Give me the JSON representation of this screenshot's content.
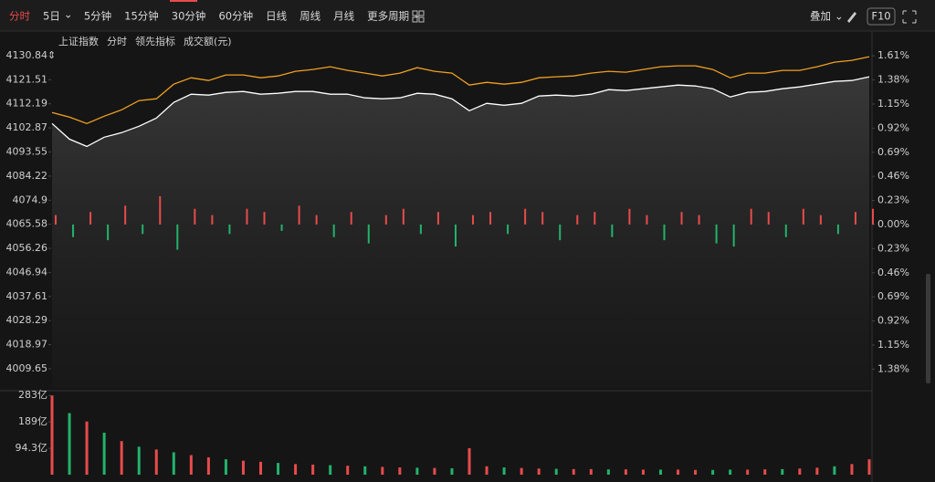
{
  "toolbar": {
    "periods": [
      "分时",
      "5日",
      "5分钟",
      "15分钟",
      "30分钟",
      "60分钟",
      "日线",
      "周线",
      "月线",
      "更多周期"
    ],
    "overlay": "叠加",
    "f10": "F10"
  },
  "chart_data": [
    {
      "type": "line",
      "header_labels": [
        "分时",
        "成交额(元)"
      ],
      "series": [
        {
          "name": "上证指数",
          "color": "#ffffff",
          "values": [
            4104.56,
            4098.54,
            4095.7,
            4099.25,
            4101.02,
            4103.5,
            4106.69,
            4112.72,
            4115.9,
            4115.55,
            4116.61,
            4116.97,
            4115.9,
            4116.26,
            4116.97,
            4116.97,
            4115.9,
            4115.9,
            4114.49,
            4114.13,
            4114.49,
            4116.26,
            4115.9,
            4114.13,
            4109.53,
            4112.36,
            4111.65,
            4112.36,
            4115.2,
            4115.55,
            4115.2,
            4115.9,
            4117.68,
            4117.32,
            4118.03,
            4118.74,
            4119.45,
            4119.09,
            4118.03,
            4114.84,
            4116.61,
            4116.97,
            4118.03,
            4118.74,
            4119.8,
            4120.87,
            4121.22,
            4122.64
          ]
        },
        {
          "name": "领先指标",
          "color": "#f0a020",
          "values": [
            4108.82,
            4107.04,
            4104.56,
            4107.4,
            4109.88,
            4113.42,
            4114.13,
            4119.8,
            4122.28,
            4121.22,
            4123.35,
            4123.35,
            4122.28,
            4122.99,
            4124.76,
            4125.47,
            4126.54,
            4125.12,
            4124.06,
            4122.99,
            4124.06,
            4126.18,
            4124.76,
            4124.06,
            4119.45,
            4120.51,
            4119.8,
            4120.51,
            4122.28,
            4122.64,
            4122.99,
            4124.06,
            4124.76,
            4124.41,
            4125.47,
            4126.54,
            4126.89,
            4126.89,
            4125.47,
            4122.28,
            4124.06,
            4124.06,
            4125.12,
            4125.12,
            4126.54,
            4128.31,
            4129.02,
            4130.44
          ]
        }
      ],
      "bars": {
        "axis": "y2",
        "values": [
          0.09,
          -0.12,
          0.12,
          -0.15,
          0.18,
          -0.09,
          0.27,
          -0.24,
          0.15,
          0.09,
          -0.09,
          0.15,
          0.12,
          -0.06,
          0.18,
          0.09,
          -0.12,
          0.12,
          -0.18,
          0.09,
          0.15,
          -0.09,
          0.12,
          -0.21,
          0.09,
          0.12,
          -0.09,
          0.15,
          0.12,
          -0.15,
          0.09,
          0.12,
          -0.12,
          0.15,
          0.09,
          -0.15,
          0.12,
          0.09,
          -0.18,
          -0.21,
          0.15,
          0.12,
          -0.12,
          0.15,
          0.09,
          -0.09,
          0.12,
          0.15
        ]
      },
      "up_color": "#e84b4b",
      "down_color": "#22b36b",
      "ylim": [
        4002.2,
        4134.0
      ],
      "yticks": [
        4130.84,
        4121.51,
        4112.19,
        4102.87,
        4093.55,
        4084.22,
        4074.9,
        4065.58,
        4056.26,
        4046.94,
        4037.61,
        4028.29,
        4018.97,
        4009.65
      ],
      "y2lim": [
        -1.56,
        1.69
      ],
      "y2ticks": [
        {
          "value": 1.61,
          "label": "1.61%"
        },
        {
          "value": 1.38,
          "label": "1.38%"
        },
        {
          "value": 1.15,
          "label": "1.15%"
        },
        {
          "value": 0.92,
          "label": "0.92%"
        },
        {
          "value": 0.69,
          "label": "0.69%"
        },
        {
          "value": 0.46,
          "label": "0.46%"
        },
        {
          "value": 0.23,
          "label": "0.23%"
        },
        {
          "value": 0,
          "label": "0.00%"
        },
        {
          "value": -0.23,
          "label": "0.23%"
        },
        {
          "value": -0.46,
          "label": "0.46%"
        },
        {
          "value": -0.69,
          "label": "0.69%"
        },
        {
          "value": -0.92,
          "label": "0.92%"
        },
        {
          "value": -1.15,
          "label": "1.15%"
        },
        {
          "value": -1.38,
          "label": "1.38%"
        }
      ]
    },
    {
      "type": "bar",
      "values": [
        283,
        220,
        190,
        150,
        120,
        100,
        90,
        80,
        70,
        62,
        55,
        50,
        46,
        42,
        38,
        36,
        34,
        32,
        30,
        28,
        26,
        25,
        24,
        23,
        95,
        30,
        26,
        24,
        22,
        21,
        20,
        20,
        19,
        19,
        18,
        18,
        18,
        17,
        17,
        18,
        18,
        19,
        20,
        22,
        25,
        30,
        38,
        55
      ],
      "ylim": [
        0,
        300
      ],
      "yticks": [
        {
          "value": 283,
          "label": "283亿"
        },
        {
          "value": 189,
          "label": "189亿"
        },
        {
          "value": 94.3,
          "label": "94.3亿"
        }
      ]
    }
  ]
}
